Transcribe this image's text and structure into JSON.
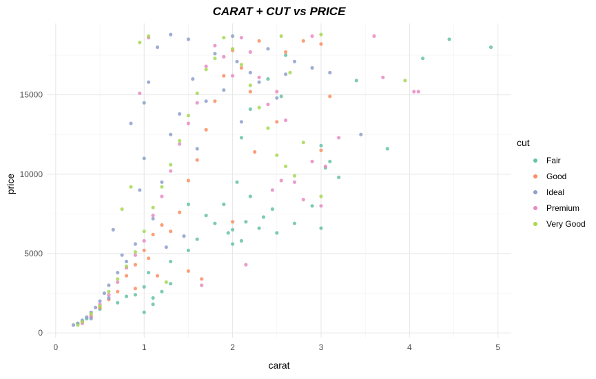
{
  "chart_data": {
    "type": "scatter",
    "title": "CARAT + CUT vs PRICE",
    "xlabel": "carat",
    "ylabel": "price",
    "xlim": [
      -0.1,
      5.15
    ],
    "ylim": [
      -300,
      19500
    ],
    "xticks": [
      0,
      1,
      2,
      3,
      4,
      5
    ],
    "xtick_labels": [
      "0",
      "1",
      "2",
      "3",
      "4",
      "5"
    ],
    "yticks": [
      0,
      5000,
      10000,
      15000
    ],
    "ytick_labels": [
      "0",
      "5000",
      "10000",
      "15000"
    ],
    "grid": true,
    "legend": {
      "title": "cut",
      "position": "right"
    },
    "series": [
      {
        "name": "Fair",
        "color": "#66c2a5",
        "points": [
          [
            0.35,
            900
          ],
          [
            0.5,
            1500
          ],
          [
            0.7,
            1900
          ],
          [
            0.8,
            2300
          ],
          [
            0.9,
            2400
          ],
          [
            1.0,
            1300
          ],
          [
            1.0,
            2900
          ],
          [
            1.05,
            3800
          ],
          [
            1.1,
            2200
          ],
          [
            1.2,
            2600
          ],
          [
            1.3,
            3100
          ],
          [
            1.5,
            5200
          ],
          [
            1.5,
            8100
          ],
          [
            1.6,
            5900
          ],
          [
            1.7,
            7400
          ],
          [
            1.8,
            6900
          ],
          [
            1.9,
            8100
          ],
          [
            1.95,
            6300
          ],
          [
            2.0,
            5600
          ],
          [
            2.0,
            6500
          ],
          [
            2.05,
            9500
          ],
          [
            2.1,
            5800
          ],
          [
            2.15,
            7000
          ],
          [
            2.2,
            8600
          ],
          [
            2.3,
            6600
          ],
          [
            2.35,
            7300
          ],
          [
            2.5,
            6300
          ],
          [
            2.45,
            7800
          ],
          [
            2.55,
            14900
          ],
          [
            2.6,
            17500
          ],
          [
            2.7,
            6900
          ],
          [
            2.9,
            8000
          ],
          [
            3.0,
            6600
          ],
          [
            3.0,
            11800
          ],
          [
            3.05,
            10400
          ],
          [
            3.1,
            10800
          ],
          [
            3.2,
            9800
          ],
          [
            3.4,
            15900
          ],
          [
            3.75,
            11600
          ],
          [
            4.15,
            17300
          ],
          [
            4.45,
            18500
          ],
          [
            4.92,
            18000
          ],
          [
            2.1,
            12300
          ],
          [
            2.2,
            14100
          ],
          [
            2.4,
            16000
          ],
          [
            1.3,
            4500
          ],
          [
            1.1,
            1800
          ],
          [
            0.25,
            600
          ]
        ]
      },
      {
        "name": "Good",
        "color": "#fc8d62",
        "points": [
          [
            0.3,
            700
          ],
          [
            0.4,
            1000
          ],
          [
            0.5,
            1600
          ],
          [
            0.6,
            2100
          ],
          [
            0.7,
            2600
          ],
          [
            0.8,
            3600
          ],
          [
            0.9,
            4300
          ],
          [
            1.0,
            5200
          ],
          [
            1.05,
            4700
          ],
          [
            1.1,
            6200
          ],
          [
            1.2,
            6800
          ],
          [
            1.3,
            6400
          ],
          [
            1.4,
            7600
          ],
          [
            1.5,
            9600
          ],
          [
            1.6,
            10900
          ],
          [
            1.7,
            12800
          ],
          [
            1.8,
            14600
          ],
          [
            1.9,
            16200
          ],
          [
            2.0,
            17800
          ],
          [
            2.1,
            16700
          ],
          [
            2.2,
            15200
          ],
          [
            2.3,
            18400
          ],
          [
            2.5,
            13300
          ],
          [
            2.6,
            17700
          ],
          [
            2.8,
            18400
          ],
          [
            3.0,
            11500
          ],
          [
            3.0,
            18200
          ],
          [
            3.1,
            14900
          ],
          [
            1.65,
            3400
          ],
          [
            1.5,
            3900
          ],
          [
            2.0,
            7000
          ],
          [
            2.25,
            11400
          ],
          [
            0.9,
            2800
          ],
          [
            1.15,
            3600
          ]
        ]
      },
      {
        "name": "Ideal",
        "color": "#8da0cb",
        "points": [
          [
            0.2,
            500
          ],
          [
            0.25,
            600
          ],
          [
            0.3,
            800
          ],
          [
            0.35,
            1000
          ],
          [
            0.4,
            1300
          ],
          [
            0.45,
            1600
          ],
          [
            0.5,
            2000
          ],
          [
            0.55,
            2500
          ],
          [
            0.6,
            3000
          ],
          [
            0.65,
            6500
          ],
          [
            0.7,
            3800
          ],
          [
            0.8,
            4500
          ],
          [
            0.9,
            5600
          ],
          [
            0.95,
            9000
          ],
          [
            1.0,
            11000
          ],
          [
            1.0,
            14500
          ],
          [
            1.05,
            15800
          ],
          [
            1.1,
            7200
          ],
          [
            1.2,
            9500
          ],
          [
            1.3,
            12500
          ],
          [
            1.4,
            13800
          ],
          [
            1.5,
            18500
          ],
          [
            1.55,
            16000
          ],
          [
            1.6,
            11600
          ],
          [
            1.7,
            14600
          ],
          [
            1.8,
            17600
          ],
          [
            1.9,
            15300
          ],
          [
            2.0,
            18700
          ],
          [
            2.05,
            17100
          ],
          [
            2.1,
            13300
          ],
          [
            2.2,
            16400
          ],
          [
            2.3,
            15800
          ],
          [
            2.4,
            17900
          ],
          [
            2.5,
            14800
          ],
          [
            2.6,
            16300
          ],
          [
            2.7,
            17100
          ],
          [
            2.9,
            16700
          ],
          [
            3.1,
            16400
          ],
          [
            3.45,
            12500
          ],
          [
            0.85,
            13200
          ],
          [
            1.15,
            18000
          ],
          [
            1.3,
            18800
          ],
          [
            0.75,
            4900
          ],
          [
            0.6,
            2200
          ],
          [
            1.25,
            5400
          ],
          [
            1.45,
            6100
          ],
          [
            0.4,
            900
          ]
        ]
      },
      {
        "name": "Premium",
        "color": "#e78ac3",
        "points": [
          [
            0.3,
            600
          ],
          [
            0.4,
            1100
          ],
          [
            0.5,
            1800
          ],
          [
            0.6,
            2400
          ],
          [
            0.7,
            3200
          ],
          [
            0.8,
            4100
          ],
          [
            0.9,
            4900
          ],
          [
            1.0,
            5800
          ],
          [
            1.1,
            7400
          ],
          [
            1.2,
            8600
          ],
          [
            1.3,
            10200
          ],
          [
            1.4,
            11900
          ],
          [
            1.5,
            13200
          ],
          [
            1.6,
            14500
          ],
          [
            1.7,
            16800
          ],
          [
            1.8,
            18100
          ],
          [
            1.9,
            17400
          ],
          [
            2.0,
            16200
          ],
          [
            2.1,
            18600
          ],
          [
            2.2,
            17700
          ],
          [
            2.3,
            16100
          ],
          [
            2.4,
            14400
          ],
          [
            2.5,
            15200
          ],
          [
            2.6,
            13400
          ],
          [
            2.7,
            9500
          ],
          [
            2.8,
            8400
          ],
          [
            2.9,
            10800
          ],
          [
            3.0,
            8000
          ],
          [
            3.05,
            10500
          ],
          [
            3.2,
            12300
          ],
          [
            3.6,
            18700
          ],
          [
            3.7,
            16100
          ],
          [
            4.05,
            15200
          ],
          [
            4.1,
            15200
          ],
          [
            2.45,
            9000
          ],
          [
            2.55,
            9600
          ],
          [
            1.65,
            3000
          ],
          [
            0.95,
            15100
          ],
          [
            1.05,
            18600
          ],
          [
            2.9,
            18700
          ],
          [
            2.15,
            4300
          ]
        ]
      },
      {
        "name": "Very Good",
        "color": "#a6d854",
        "points": [
          [
            0.25,
            500
          ],
          [
            0.3,
            700
          ],
          [
            0.4,
            1200
          ],
          [
            0.5,
            1700
          ],
          [
            0.6,
            2600
          ],
          [
            0.7,
            3400
          ],
          [
            0.8,
            4200
          ],
          [
            0.9,
            5100
          ],
          [
            1.0,
            6400
          ],
          [
            1.1,
            7900
          ],
          [
            1.2,
            9200
          ],
          [
            1.3,
            10600
          ],
          [
            1.4,
            12100
          ],
          [
            1.5,
            13700
          ],
          [
            1.6,
            15100
          ],
          [
            1.7,
            16600
          ],
          [
            1.8,
            17300
          ],
          [
            1.9,
            18600
          ],
          [
            2.0,
            17900
          ],
          [
            2.1,
            16900
          ],
          [
            2.2,
            15600
          ],
          [
            2.3,
            14200
          ],
          [
            2.4,
            12900
          ],
          [
            2.5,
            11200
          ],
          [
            2.6,
            10500
          ],
          [
            2.7,
            9900
          ],
          [
            2.8,
            12000
          ],
          [
            3.0,
            8600
          ],
          [
            3.0,
            18800
          ],
          [
            3.95,
            15900
          ],
          [
            0.95,
            18300
          ],
          [
            1.05,
            18700
          ],
          [
            0.85,
            9200
          ],
          [
            2.55,
            18700
          ],
          [
            2.65,
            16400
          ],
          [
            1.25,
            3200
          ],
          [
            0.75,
            7800
          ]
        ]
      }
    ]
  }
}
